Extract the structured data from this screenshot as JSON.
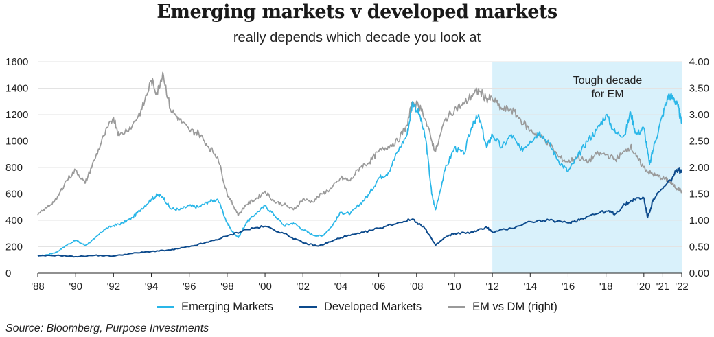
{
  "title": "Emerging markets v developed markets",
  "subtitle": "really depends which decade you look at",
  "source": "Source: Bloomberg, Purpose Investments",
  "chart_data": {
    "type": "line",
    "x_ticks": [
      "'88",
      "'90",
      "'92",
      "'94",
      "'96",
      "'98",
      "'00",
      "'02",
      "'04",
      "'06",
      "'08",
      "'10",
      "'12",
      "'14",
      "'16",
      "'18",
      "'20",
      "'21",
      "'22"
    ],
    "y_left": {
      "min": 0,
      "max": 1600,
      "ticks": [
        "0",
        "200",
        "400",
        "600",
        "800",
        "1000",
        "1200",
        "1400",
        "1600"
      ]
    },
    "y_right": {
      "min": 0,
      "max": 4,
      "ticks": [
        "0.00",
        "0.50",
        "1.00",
        "1.50",
        "2.00",
        "2.50",
        "3.00",
        "3.50",
        "4.00"
      ]
    },
    "grid": true,
    "legend_position": "bottom",
    "shaded_region": {
      "x_start": 2012,
      "x_end": 2022,
      "label_line1": "Tough decade",
      "label_line2": "for EM",
      "color": "#d9f1fb"
    },
    "series": [
      {
        "name": "Emerging Markets",
        "axis": "left",
        "color": "#29b6e8",
        "points": [
          [
            1988,
            130
          ],
          [
            1988.5,
            140
          ],
          [
            1989,
            160
          ],
          [
            1989.5,
            210
          ],
          [
            1990,
            250
          ],
          [
            1990.5,
            210
          ],
          [
            1991,
            260
          ],
          [
            1991.5,
            330
          ],
          [
            1992,
            360
          ],
          [
            1992.5,
            380
          ],
          [
            1993,
            420
          ],
          [
            1993.5,
            490
          ],
          [
            1994,
            560
          ],
          [
            1994.3,
            590
          ],
          [
            1994.6,
            580
          ],
          [
            1995,
            490
          ],
          [
            1995.5,
            480
          ],
          [
            1996,
            510
          ],
          [
            1996.5,
            500
          ],
          [
            1997,
            540
          ],
          [
            1997.5,
            560
          ],
          [
            1998,
            380
          ],
          [
            1998.3,
            310
          ],
          [
            1998.6,
            270
          ],
          [
            1999,
            380
          ],
          [
            1999.5,
            450
          ],
          [
            2000,
            510
          ],
          [
            2000.5,
            440
          ],
          [
            2001,
            360
          ],
          [
            2001.5,
            380
          ],
          [
            2002,
            330
          ],
          [
            2002.5,
            290
          ],
          [
            2003,
            280
          ],
          [
            2003.5,
            350
          ],
          [
            2004,
            460
          ],
          [
            2004.5,
            450
          ],
          [
            2005,
            520
          ],
          [
            2005.5,
            600
          ],
          [
            2006,
            720
          ],
          [
            2006.5,
            760
          ],
          [
            2007,
            920
          ],
          [
            2007.5,
            1050
          ],
          [
            2007.8,
            1300
          ],
          [
            2008.2,
            1180
          ],
          [
            2008.5,
            1000
          ],
          [
            2008.8,
            600
          ],
          [
            2009,
            480
          ],
          [
            2009.5,
            780
          ],
          [
            2010,
            950
          ],
          [
            2010.5,
            900
          ],
          [
            2011,
            1150
          ],
          [
            2011.3,
            1180
          ],
          [
            2011.7,
            950
          ],
          [
            2012,
            1050
          ],
          [
            2012.5,
            950
          ],
          [
            2013,
            1050
          ],
          [
            2013.5,
            930
          ],
          [
            2014,
            1000
          ],
          [
            2014.5,
            1070
          ],
          [
            2015,
            980
          ],
          [
            2015.5,
            850
          ],
          [
            2016,
            770
          ],
          [
            2016.5,
            880
          ],
          [
            2017,
            1000
          ],
          [
            2017.5,
            1080
          ],
          [
            2018,
            1200
          ],
          [
            2018.5,
            1060
          ],
          [
            2019,
            1050
          ],
          [
            2019.3,
            1220
          ],
          [
            2019.6,
            1050
          ],
          [
            2020,
            1100
          ],
          [
            2020.3,
            820
          ],
          [
            2020.6,
            1000
          ],
          [
            2021,
            1200
          ],
          [
            2021.3,
            1350
          ],
          [
            2021.6,
            1320
          ],
          [
            2021.8,
            1260
          ],
          [
            2022,
            1130
          ]
        ]
      },
      {
        "name": "Developed Markets",
        "axis": "left",
        "color": "#0c4a8c",
        "points": [
          [
            1988,
            130
          ],
          [
            1989,
            135
          ],
          [
            1990,
            125
          ],
          [
            1991,
            135
          ],
          [
            1992,
            130
          ],
          [
            1993,
            150
          ],
          [
            1994,
            165
          ],
          [
            1995,
            175
          ],
          [
            1996,
            200
          ],
          [
            1997,
            235
          ],
          [
            1998,
            280
          ],
          [
            1999,
            330
          ],
          [
            2000,
            355
          ],
          [
            2001,
            300
          ],
          [
            2002,
            230
          ],
          [
            2002.8,
            205
          ],
          [
            2003.5,
            240
          ],
          [
            2004,
            270
          ],
          [
            2005,
            300
          ],
          [
            2006,
            340
          ],
          [
            2007,
            380
          ],
          [
            2007.8,
            410
          ],
          [
            2008.5,
            330
          ],
          [
            2009,
            210
          ],
          [
            2009.5,
            270
          ],
          [
            2010,
            300
          ],
          [
            2011,
            310
          ],
          [
            2011.7,
            350
          ],
          [
            2012,
            310
          ],
          [
            2013,
            340
          ],
          [
            2014,
            390
          ],
          [
            2015,
            400
          ],
          [
            2016,
            380
          ],
          [
            2016.5,
            400
          ],
          [
            2017,
            430
          ],
          [
            2018,
            470
          ],
          [
            2018.5,
            450
          ],
          [
            2019,
            520
          ],
          [
            2019.5,
            560
          ],
          [
            2020,
            570
          ],
          [
            2020.2,
            420
          ],
          [
            2020.5,
            560
          ],
          [
            2021,
            640
          ],
          [
            2021.5,
            720
          ],
          [
            2021.8,
            790
          ],
          [
            2022,
            760
          ]
        ]
      },
      {
        "name": "EM vs DM (right)",
        "axis": "right",
        "color": "#9a9a9a",
        "points": [
          [
            1988,
            1.1
          ],
          [
            1988.5,
            1.25
          ],
          [
            1989,
            1.4
          ],
          [
            1989.5,
            1.75
          ],
          [
            1990,
            1.95
          ],
          [
            1990.5,
            1.7
          ],
          [
            1991,
            2.15
          ],
          [
            1991.5,
            2.6
          ],
          [
            1992,
            2.95
          ],
          [
            1992.3,
            2.6
          ],
          [
            1993,
            2.8
          ],
          [
            1993.5,
            3.1
          ],
          [
            1994,
            3.65
          ],
          [
            1994.3,
            3.4
          ],
          [
            1994.6,
            3.8
          ],
          [
            1995,
            3.1
          ],
          [
            1995.5,
            2.9
          ],
          [
            1996,
            2.7
          ],
          [
            1996.5,
            2.65
          ],
          [
            1997,
            2.4
          ],
          [
            1997.5,
            2.2
          ],
          [
            1998,
            1.5
          ],
          [
            1998.3,
            1.3
          ],
          [
            1998.6,
            1.1
          ],
          [
            1999,
            1.3
          ],
          [
            1999.5,
            1.4
          ],
          [
            2000,
            1.55
          ],
          [
            2000.5,
            1.35
          ],
          [
            2001,
            1.3
          ],
          [
            2001.5,
            1.2
          ],
          [
            2002,
            1.4
          ],
          [
            2002.5,
            1.35
          ],
          [
            2003,
            1.5
          ],
          [
            2003.5,
            1.6
          ],
          [
            2004,
            1.8
          ],
          [
            2004.5,
            1.75
          ],
          [
            2005,
            2.0
          ],
          [
            2005.5,
            2.1
          ],
          [
            2006,
            2.3
          ],
          [
            2006.5,
            2.4
          ],
          [
            2007,
            2.5
          ],
          [
            2007.5,
            2.8
          ],
          [
            2007.8,
            3.25
          ],
          [
            2008.3,
            3.1
          ],
          [
            2008.8,
            2.5
          ],
          [
            2009,
            2.3
          ],
          [
            2009.5,
            2.9
          ],
          [
            2010,
            3.1
          ],
          [
            2010.5,
            3.2
          ],
          [
            2011,
            3.4
          ],
          [
            2011.3,
            3.45
          ],
          [
            2011.7,
            3.3
          ],
          [
            2012,
            3.3
          ],
          [
            2012.5,
            3.1
          ],
          [
            2013,
            3.1
          ],
          [
            2013.5,
            2.9
          ],
          [
            2014,
            2.7
          ],
          [
            2014.5,
            2.6
          ],
          [
            2015,
            2.45
          ],
          [
            2015.5,
            2.2
          ],
          [
            2016,
            2.1
          ],
          [
            2016.5,
            2.2
          ],
          [
            2017,
            2.1
          ],
          [
            2017.5,
            2.25
          ],
          [
            2018,
            2.25
          ],
          [
            2018.5,
            2.15
          ],
          [
            2019,
            2.3
          ],
          [
            2019.3,
            2.4
          ],
          [
            2019.6,
            2.2
          ],
          [
            2020,
            2.0
          ],
          [
            2020.3,
            1.9
          ],
          [
            2020.6,
            1.85
          ],
          [
            2021,
            1.8
          ],
          [
            2021.3,
            1.75
          ],
          [
            2021.6,
            1.65
          ],
          [
            2021.8,
            1.6
          ],
          [
            2022,
            1.55
          ]
        ]
      }
    ]
  }
}
